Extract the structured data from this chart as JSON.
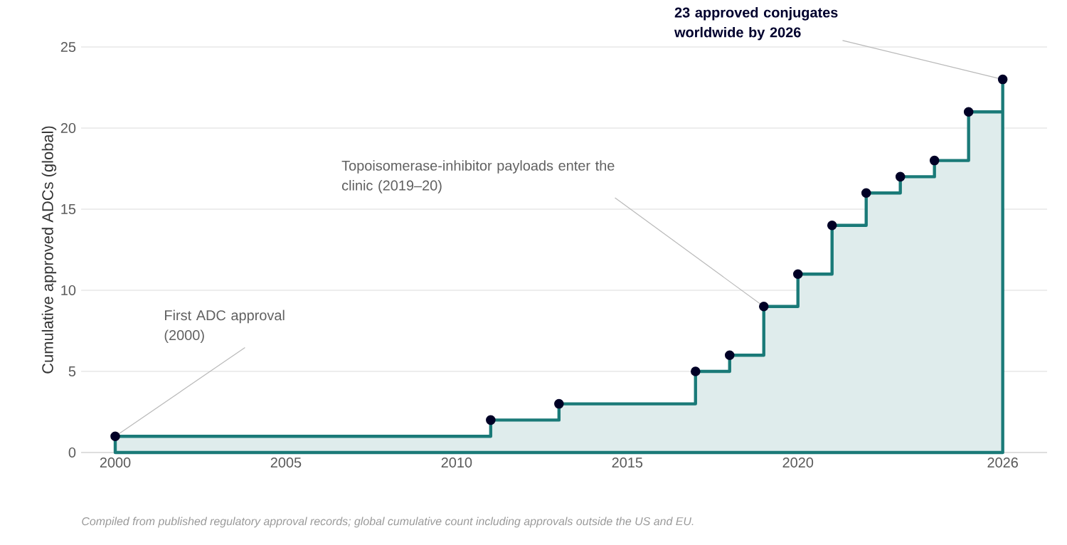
{
  "chart_data": {
    "type": "area",
    "ylabel": "Cumulative approved ADCs (global)",
    "x": [
      2000,
      2011,
      2013,
      2017,
      2018,
      2019,
      2020,
      2021,
      2022,
      2023,
      2024,
      2025,
      2026
    ],
    "values": [
      1,
      2,
      3,
      5,
      6,
      9,
      11,
      14,
      16,
      17,
      18,
      21,
      23
    ],
    "color": "#1a7a78",
    "marker": "circle",
    "grid": "y",
    "xlim": [
      1999,
      2027.3
    ],
    "ylim": [
      0,
      25
    ],
    "xticks": [
      2000,
      2005,
      2010,
      2015,
      2020,
      2026
    ],
    "yticks": [
      0,
      5,
      10,
      15,
      20,
      25
    ],
    "annotations": [
      {
        "text": "First ADC approval (2000)",
        "x": 2000,
        "y": 1
      },
      {
        "text": "Topoisomerase-inhibitor payloads enter the clinic (2019–20)",
        "x": 2019,
        "y": 9
      },
      {
        "text": "23 approved conjugates worldwide by 2026",
        "x": 2026,
        "y": 23
      },
      "Compiled from published regulatory approval records; global cumulative count including approvals outside the US and EU."
    ]
  }
}
